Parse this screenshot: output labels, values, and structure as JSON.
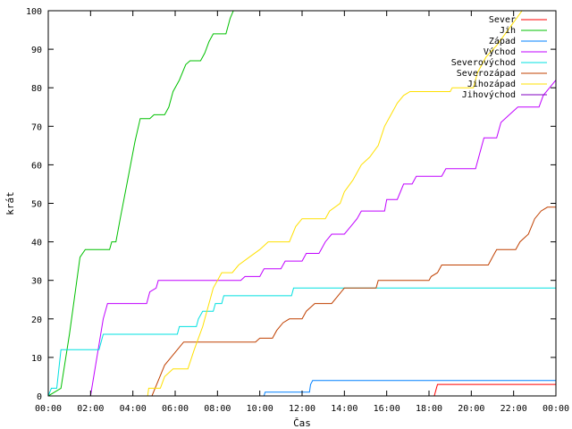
{
  "chart_data": {
    "type": "line",
    "title": "",
    "xlabel": "Čas",
    "ylabel": "krát",
    "xlim": [
      0,
      24
    ],
    "ylim": [
      0,
      100
    ],
    "x_ticks": [
      {
        "value": 0,
        "label": "00:00"
      },
      {
        "value": 2,
        "label": "02:00"
      },
      {
        "value": 4,
        "label": "04:00"
      },
      {
        "value": 6,
        "label": "06:00"
      },
      {
        "value": 8,
        "label": "08:00"
      },
      {
        "value": 10,
        "label": "10:00"
      },
      {
        "value": 12,
        "label": "12:00"
      },
      {
        "value": 14,
        "label": "14:00"
      },
      {
        "value": 16,
        "label": "16:00"
      },
      {
        "value": 18,
        "label": "18:00"
      },
      {
        "value": 20,
        "label": "20:00"
      },
      {
        "value": 22,
        "label": "22:00"
      },
      {
        "value": 24,
        "label": "00:00"
      }
    ],
    "y_ticks": [
      0,
      10,
      20,
      30,
      40,
      50,
      60,
      70,
      80,
      90,
      100
    ],
    "grid": false,
    "legend_position": "top-right",
    "series": [
      {
        "name": "Sever",
        "color": "#ff0000",
        "points": [
          [
            0,
            0
          ],
          [
            18.25,
            0
          ],
          [
            18.3,
            1
          ],
          [
            18.35,
            2
          ],
          [
            18.4,
            3
          ],
          [
            24,
            3
          ]
        ]
      },
      {
        "name": "Jih",
        "color": "#00c000",
        "points": [
          [
            0,
            0
          ],
          [
            0.6,
            2
          ],
          [
            1.0,
            16
          ],
          [
            1.3,
            28
          ],
          [
            1.5,
            36
          ],
          [
            1.75,
            38
          ],
          [
            2.9,
            38
          ],
          [
            3.0,
            40
          ],
          [
            3.2,
            40
          ],
          [
            3.4,
            46
          ],
          [
            3.75,
            56
          ],
          [
            4.1,
            66
          ],
          [
            4.35,
            72
          ],
          [
            4.8,
            72
          ],
          [
            5.0,
            73
          ],
          [
            5.5,
            73
          ],
          [
            5.7,
            75
          ],
          [
            5.9,
            79
          ],
          [
            6.2,
            82
          ],
          [
            6.5,
            86
          ],
          [
            6.7,
            87
          ],
          [
            7.2,
            87
          ],
          [
            7.4,
            89
          ],
          [
            7.6,
            92
          ],
          [
            7.8,
            94
          ],
          [
            8.4,
            94
          ],
          [
            8.6,
            98
          ],
          [
            8.75,
            100
          ]
        ]
      },
      {
        "name": "Západ",
        "color": "#0080ff",
        "points": [
          [
            0,
            0
          ],
          [
            10.2,
            0
          ],
          [
            10.25,
            1
          ],
          [
            12.35,
            1
          ],
          [
            12.4,
            3
          ],
          [
            12.5,
            4
          ],
          [
            24,
            4
          ]
        ]
      },
      {
        "name": "Východ",
        "color": "#c000ff",
        "points": [
          [
            0,
            0
          ],
          [
            2.0,
            0
          ],
          [
            2.3,
            10
          ],
          [
            2.6,
            20
          ],
          [
            2.8,
            24
          ],
          [
            4.65,
            24
          ],
          [
            4.8,
            27
          ],
          [
            5.1,
            28
          ],
          [
            5.2,
            30
          ],
          [
            9.1,
            30
          ],
          [
            9.3,
            31
          ],
          [
            10.0,
            31
          ],
          [
            10.2,
            33
          ],
          [
            11.0,
            33
          ],
          [
            11.2,
            35
          ],
          [
            12.0,
            35
          ],
          [
            12.2,
            37
          ],
          [
            12.8,
            37
          ],
          [
            12.9,
            38
          ],
          [
            13.1,
            40
          ],
          [
            13.4,
            42
          ],
          [
            14.0,
            42
          ],
          [
            14.3,
            44
          ],
          [
            14.6,
            46
          ],
          [
            14.8,
            48
          ],
          [
            15.9,
            48
          ],
          [
            16.0,
            51
          ],
          [
            16.5,
            51
          ],
          [
            16.8,
            55
          ],
          [
            17.2,
            55
          ],
          [
            17.4,
            57
          ],
          [
            18.6,
            57
          ],
          [
            18.8,
            59
          ],
          [
            20.2,
            59
          ],
          [
            20.4,
            63
          ],
          [
            20.6,
            67
          ],
          [
            21.2,
            67
          ],
          [
            21.4,
            71
          ],
          [
            21.8,
            73
          ],
          [
            22.2,
            75
          ],
          [
            23.2,
            75
          ],
          [
            23.4,
            78
          ],
          [
            23.7,
            80
          ],
          [
            24,
            82
          ]
        ]
      },
      {
        "name": "Severovýchod",
        "color": "#00e0e0",
        "points": [
          [
            0,
            0
          ],
          [
            0.15,
            2
          ],
          [
            0.4,
            2
          ],
          [
            0.6,
            12
          ],
          [
            2.4,
            12
          ],
          [
            2.6,
            16
          ],
          [
            6.1,
            16
          ],
          [
            6.2,
            18
          ],
          [
            7.0,
            18
          ],
          [
            7.1,
            20
          ],
          [
            7.3,
            22
          ],
          [
            7.8,
            22
          ],
          [
            7.9,
            24
          ],
          [
            8.2,
            24
          ],
          [
            8.3,
            26
          ],
          [
            11.5,
            26
          ],
          [
            11.6,
            28
          ],
          [
            24,
            28
          ]
        ]
      },
      {
        "name": "Severozápad",
        "color": "#c04000",
        "points": [
          [
            0,
            0
          ],
          [
            4.9,
            0
          ],
          [
            5.2,
            4
          ],
          [
            5.5,
            8
          ],
          [
            5.8,
            10
          ],
          [
            6.1,
            12
          ],
          [
            6.4,
            14
          ],
          [
            9.8,
            14
          ],
          [
            10.0,
            15
          ],
          [
            10.6,
            15
          ],
          [
            10.8,
            17
          ],
          [
            11.1,
            19
          ],
          [
            11.4,
            20
          ],
          [
            12.0,
            20
          ],
          [
            12.2,
            22
          ],
          [
            12.6,
            24
          ],
          [
            13.4,
            24
          ],
          [
            13.7,
            26
          ],
          [
            14.0,
            28
          ],
          [
            15.5,
            28
          ],
          [
            15.6,
            30
          ],
          [
            18.0,
            30
          ],
          [
            18.1,
            31
          ],
          [
            18.4,
            32
          ],
          [
            18.6,
            34
          ],
          [
            20.8,
            34
          ],
          [
            21.0,
            36
          ],
          [
            21.2,
            38
          ],
          [
            22.1,
            38
          ],
          [
            22.3,
            40
          ],
          [
            22.7,
            42
          ],
          [
            23.0,
            46
          ],
          [
            23.3,
            48
          ],
          [
            23.6,
            49
          ],
          [
            24,
            49
          ]
        ]
      },
      {
        "name": "Jihozápad",
        "color": "#ffe000",
        "points": [
          [
            0,
            0
          ],
          [
            4.7,
            0
          ],
          [
            4.75,
            2
          ],
          [
            5.3,
            2
          ],
          [
            5.5,
            5
          ],
          [
            5.9,
            7
          ],
          [
            6.6,
            7
          ],
          [
            6.9,
            12
          ],
          [
            7.3,
            18
          ],
          [
            7.8,
            28
          ],
          [
            8.2,
            32
          ],
          [
            8.7,
            32
          ],
          [
            9.0,
            34
          ],
          [
            9.5,
            36
          ],
          [
            10.0,
            38
          ],
          [
            10.4,
            40
          ],
          [
            11.4,
            40
          ],
          [
            11.7,
            44
          ],
          [
            12.0,
            46
          ],
          [
            13.1,
            46
          ],
          [
            13.3,
            48
          ],
          [
            13.8,
            50
          ],
          [
            14.0,
            53
          ],
          [
            14.4,
            56
          ],
          [
            14.8,
            60
          ],
          [
            15.2,
            62
          ],
          [
            15.6,
            65
          ],
          [
            15.9,
            70
          ],
          [
            16.2,
            73
          ],
          [
            16.5,
            76
          ],
          [
            16.8,
            78
          ],
          [
            17.1,
            79
          ],
          [
            19.0,
            79
          ],
          [
            19.1,
            80
          ],
          [
            20.1,
            80
          ],
          [
            20.3,
            84
          ],
          [
            20.7,
            88
          ],
          [
            21.2,
            91
          ],
          [
            21.6,
            94
          ],
          [
            22.0,
            97
          ],
          [
            22.4,
            100
          ]
        ]
      },
      {
        "name": "Jihovýchod",
        "color": "#8000c0",
        "points": []
      }
    ]
  }
}
